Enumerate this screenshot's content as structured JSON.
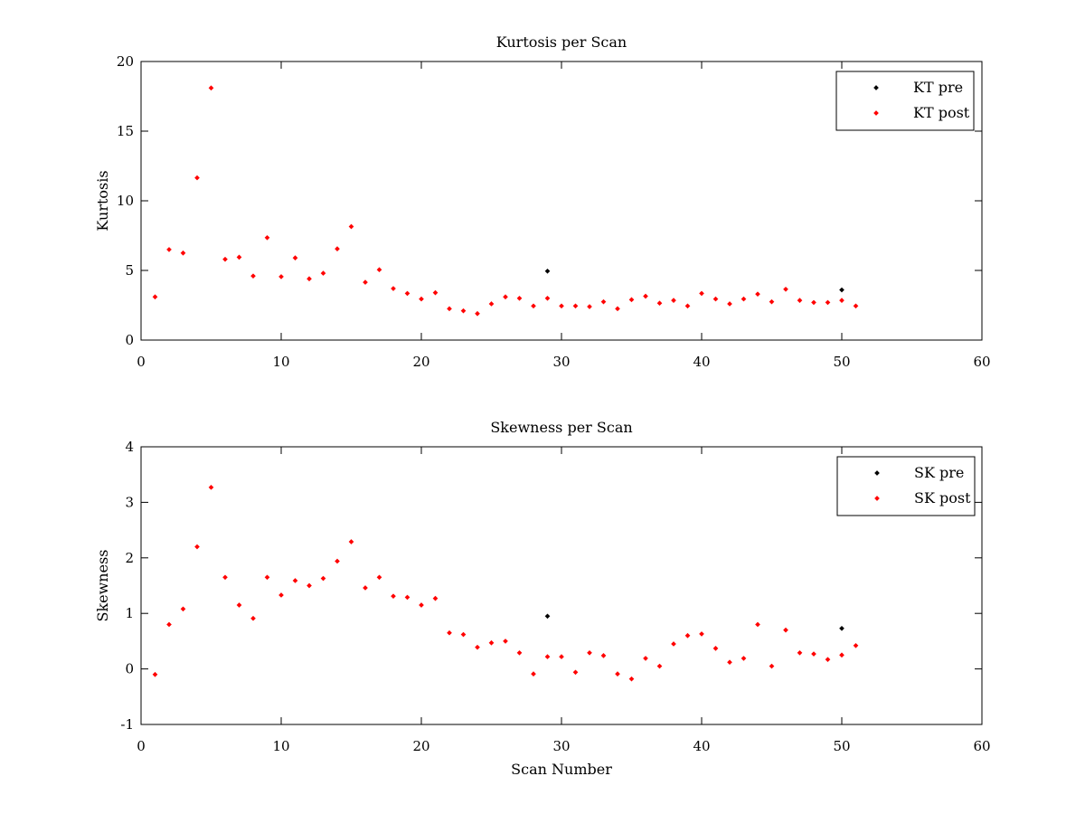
{
  "colors": {
    "pre": "#000000",
    "post": "#ff0000",
    "background": "#ffffff",
    "axes": "#000000"
  },
  "chart_data": [
    {
      "type": "scatter",
      "title": "Kurtosis per Scan",
      "xlabel": "",
      "ylabel": "Kurtosis",
      "xlim": [
        0,
        60
      ],
      "ylim": [
        0,
        20
      ],
      "xticks": [
        0,
        10,
        20,
        30,
        40,
        50,
        60
      ],
      "yticks": [
        0,
        5,
        10,
        15,
        20
      ],
      "legend_position": "top-right",
      "grid": false,
      "series": [
        {
          "name": "KT pre",
          "color": "#000000",
          "x": [
            29,
            50
          ],
          "y": [
            4.95,
            3.6
          ]
        },
        {
          "name": "KT post",
          "color": "#ff0000",
          "x": [
            1,
            2,
            3,
            4,
            5,
            6,
            7,
            8,
            9,
            10,
            11,
            12,
            13,
            14,
            15,
            16,
            17,
            18,
            19,
            20,
            21,
            22,
            23,
            24,
            25,
            26,
            27,
            28,
            29,
            30,
            31,
            32,
            33,
            34,
            35,
            36,
            37,
            38,
            39,
            40,
            41,
            42,
            43,
            44,
            45,
            46,
            47,
            48,
            49,
            50,
            51
          ],
          "y": [
            3.1,
            6.5,
            6.25,
            11.65,
            18.1,
            5.8,
            5.95,
            4.6,
            7.35,
            4.55,
            5.9,
            4.4,
            4.8,
            6.55,
            8.15,
            4.15,
            5.05,
            3.7,
            3.35,
            2.95,
            3.4,
            2.25,
            2.1,
            1.9,
            2.6,
            3.1,
            3.0,
            2.45,
            3.0,
            2.45,
            2.45,
            2.4,
            2.75,
            2.25,
            2.9,
            3.15,
            2.65,
            2.85,
            2.45,
            3.35,
            2.95,
            2.6,
            2.95,
            3.3,
            2.75,
            3.65,
            2.85,
            2.7,
            2.7,
            2.85,
            2.45
          ]
        }
      ]
    },
    {
      "type": "scatter",
      "title": "Skewness per Scan",
      "xlabel": "Scan Number",
      "ylabel": "Skewness",
      "xlim": [
        0,
        60
      ],
      "ylim": [
        -1,
        4
      ],
      "xticks": [
        0,
        10,
        20,
        30,
        40,
        50,
        60
      ],
      "yticks": [
        -1,
        0,
        1,
        2,
        3,
        4
      ],
      "legend_position": "top-right",
      "grid": false,
      "series": [
        {
          "name": "SK pre",
          "color": "#000000",
          "x": [
            29,
            50
          ],
          "y": [
            0.95,
            0.73
          ]
        },
        {
          "name": "SK post",
          "color": "#ff0000",
          "x": [
            1,
            2,
            3,
            4,
            5,
            6,
            7,
            8,
            9,
            10,
            11,
            12,
            13,
            14,
            15,
            16,
            17,
            18,
            19,
            20,
            21,
            22,
            23,
            24,
            25,
            26,
            27,
            28,
            29,
            30,
            31,
            32,
            33,
            34,
            35,
            36,
            37,
            38,
            39,
            40,
            41,
            42,
            43,
            44,
            45,
            46,
            47,
            48,
            49,
            50,
            51
          ],
          "y": [
            -0.1,
            0.8,
            1.08,
            2.2,
            3.27,
            1.65,
            1.15,
            0.91,
            1.65,
            1.33,
            1.59,
            1.5,
            1.63,
            1.94,
            2.29,
            1.46,
            1.65,
            1.31,
            1.29,
            1.15,
            1.27,
            0.65,
            0.62,
            0.39,
            0.47,
            0.5,
            0.29,
            -0.09,
            0.22,
            0.22,
            -0.06,
            0.29,
            0.24,
            -0.09,
            -0.18,
            0.19,
            0.05,
            0.45,
            0.6,
            0.63,
            0.37,
            0.12,
            0.19,
            0.8,
            0.05,
            0.7,
            0.29,
            0.27,
            0.17,
            0.25,
            0.42
          ]
        }
      ]
    }
  ]
}
